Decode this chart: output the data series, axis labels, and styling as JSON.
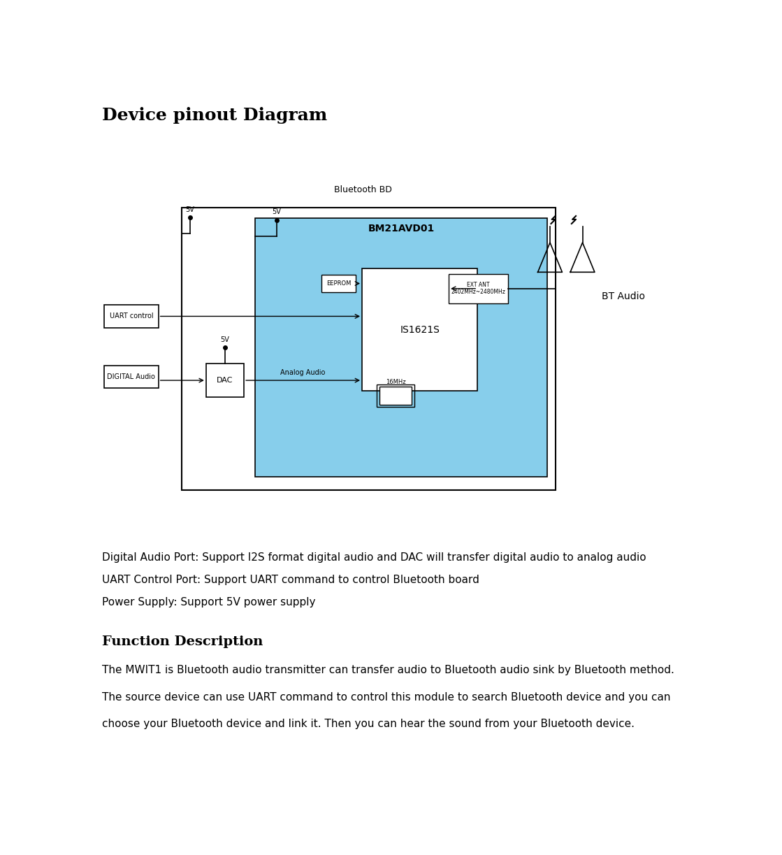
{
  "title": "Device pinout Diagram",
  "bluetooth_bd_label": "Bluetooth BD",
  "bm21_label": "BM21AVD01",
  "is1621_label": "IS1621S",
  "eeprom_label": "EEPROM",
  "ext_ant_label": "EXT ANT\n2402MHz~2480MHz",
  "crystal_label": "16MHz",
  "dac_label": "DAC",
  "uart_label": "UART control",
  "digital_label": "DIGITAL Audio",
  "analog_audio_label": "Analog Audio",
  "bt_audio_label": "BT Audio",
  "bullet1": "Digital Audio Port: Support I2S format digital audio and DAC will transfer digital audio to analog audio",
  "bullet2": "UART Control Port: Support UART command to control Bluetooth board",
  "bullet3": "Power Supply: Support 5V power supply",
  "func_title": "Function Description",
  "func_text1": "The MWIT1 is Bluetooth audio transmitter can transfer audio to Bluetooth audio sink by Bluetooth method.",
  "func_text2": "The source device can use UART command to control this module to search Bluetooth device and you can",
  "func_text3": "choose your Bluetooth device and link it. Then you can hear the sound from your Bluetooth device.",
  "bg_color": "#ffffff",
  "blue_fill": "#87CEEB"
}
